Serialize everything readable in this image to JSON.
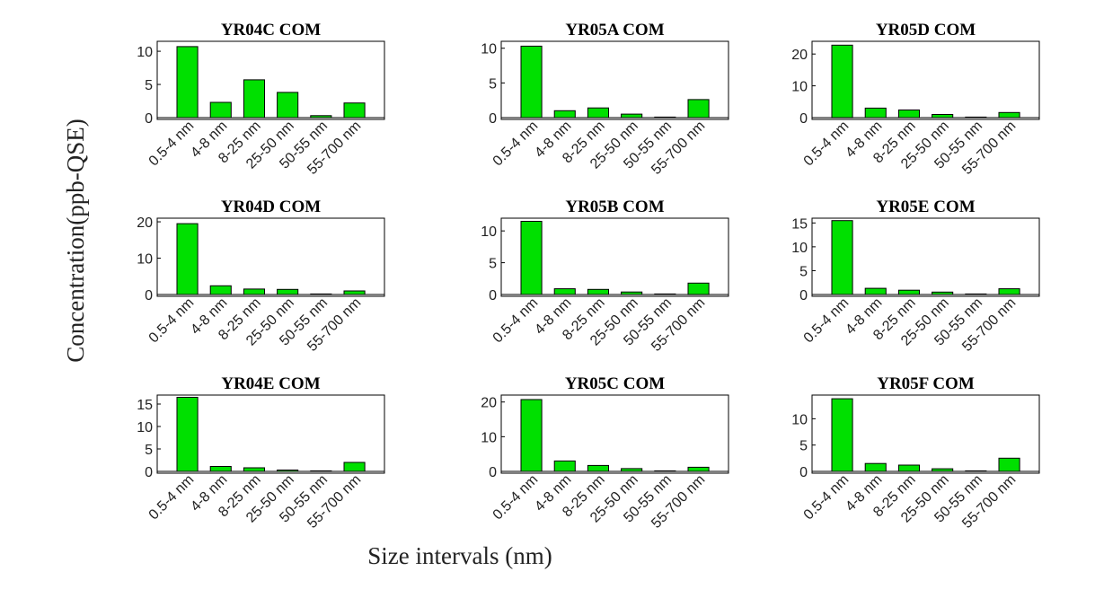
{
  "chart_data": {
    "type": "bar",
    "ylabel": "Concentration(ppb-QSE)",
    "xlabel": "Size intervals (nm)",
    "categories": [
      "0.5-4 nm",
      "4-8 nm",
      "8-25 nm",
      "25-50 nm",
      "50-55 nm",
      "55-700 nm"
    ],
    "bar_color": "#00e000",
    "panels": [
      {
        "title": "YR04C COM",
        "values": [
          10.7,
          2.3,
          5.7,
          3.8,
          0.3,
          2.2
        ],
        "ylim": [
          0,
          11.5
        ],
        "yticks": [
          0,
          5,
          10
        ]
      },
      {
        "title": "YR05A COM",
        "values": [
          10.3,
          1.0,
          1.4,
          0.5,
          0.05,
          2.6
        ],
        "ylim": [
          0,
          11
        ],
        "yticks": [
          0,
          5,
          10
        ]
      },
      {
        "title": "YR05D COM",
        "values": [
          22.8,
          3.0,
          2.4,
          1.0,
          0.1,
          1.6
        ],
        "ylim": [
          0,
          24
        ],
        "yticks": [
          0,
          10,
          20
        ]
      },
      {
        "title": "YR04D COM",
        "values": [
          19.5,
          2.4,
          1.5,
          1.4,
          0.1,
          1.0
        ],
        "ylim": [
          0,
          21
        ],
        "yticks": [
          0,
          10,
          20
        ]
      },
      {
        "title": "YR05B COM",
        "values": [
          11.5,
          0.9,
          0.8,
          0.4,
          0.05,
          1.8
        ],
        "ylim": [
          0,
          12
        ],
        "yticks": [
          0,
          5,
          10
        ]
      },
      {
        "title": "YR05E COM",
        "values": [
          15.5,
          1.3,
          0.9,
          0.5,
          0.05,
          1.2
        ],
        "ylim": [
          0,
          16
        ],
        "yticks": [
          0,
          5,
          10,
          15
        ]
      },
      {
        "title": "YR04E COM",
        "values": [
          16.5,
          1.1,
          0.8,
          0.3,
          0.05,
          2.0
        ],
        "ylim": [
          0,
          17
        ],
        "yticks": [
          0,
          5,
          10,
          15
        ]
      },
      {
        "title": "YR05C COM",
        "values": [
          20.7,
          3.0,
          1.7,
          0.8,
          0.05,
          1.2
        ],
        "ylim": [
          0,
          22
        ],
        "yticks": [
          0,
          10,
          20
        ]
      },
      {
        "title": "YR05F COM",
        "values": [
          13.8,
          1.5,
          1.2,
          0.5,
          0.05,
          2.5
        ],
        "ylim": [
          0,
          14.5
        ],
        "yticks": [
          0,
          5,
          10
        ]
      }
    ]
  }
}
